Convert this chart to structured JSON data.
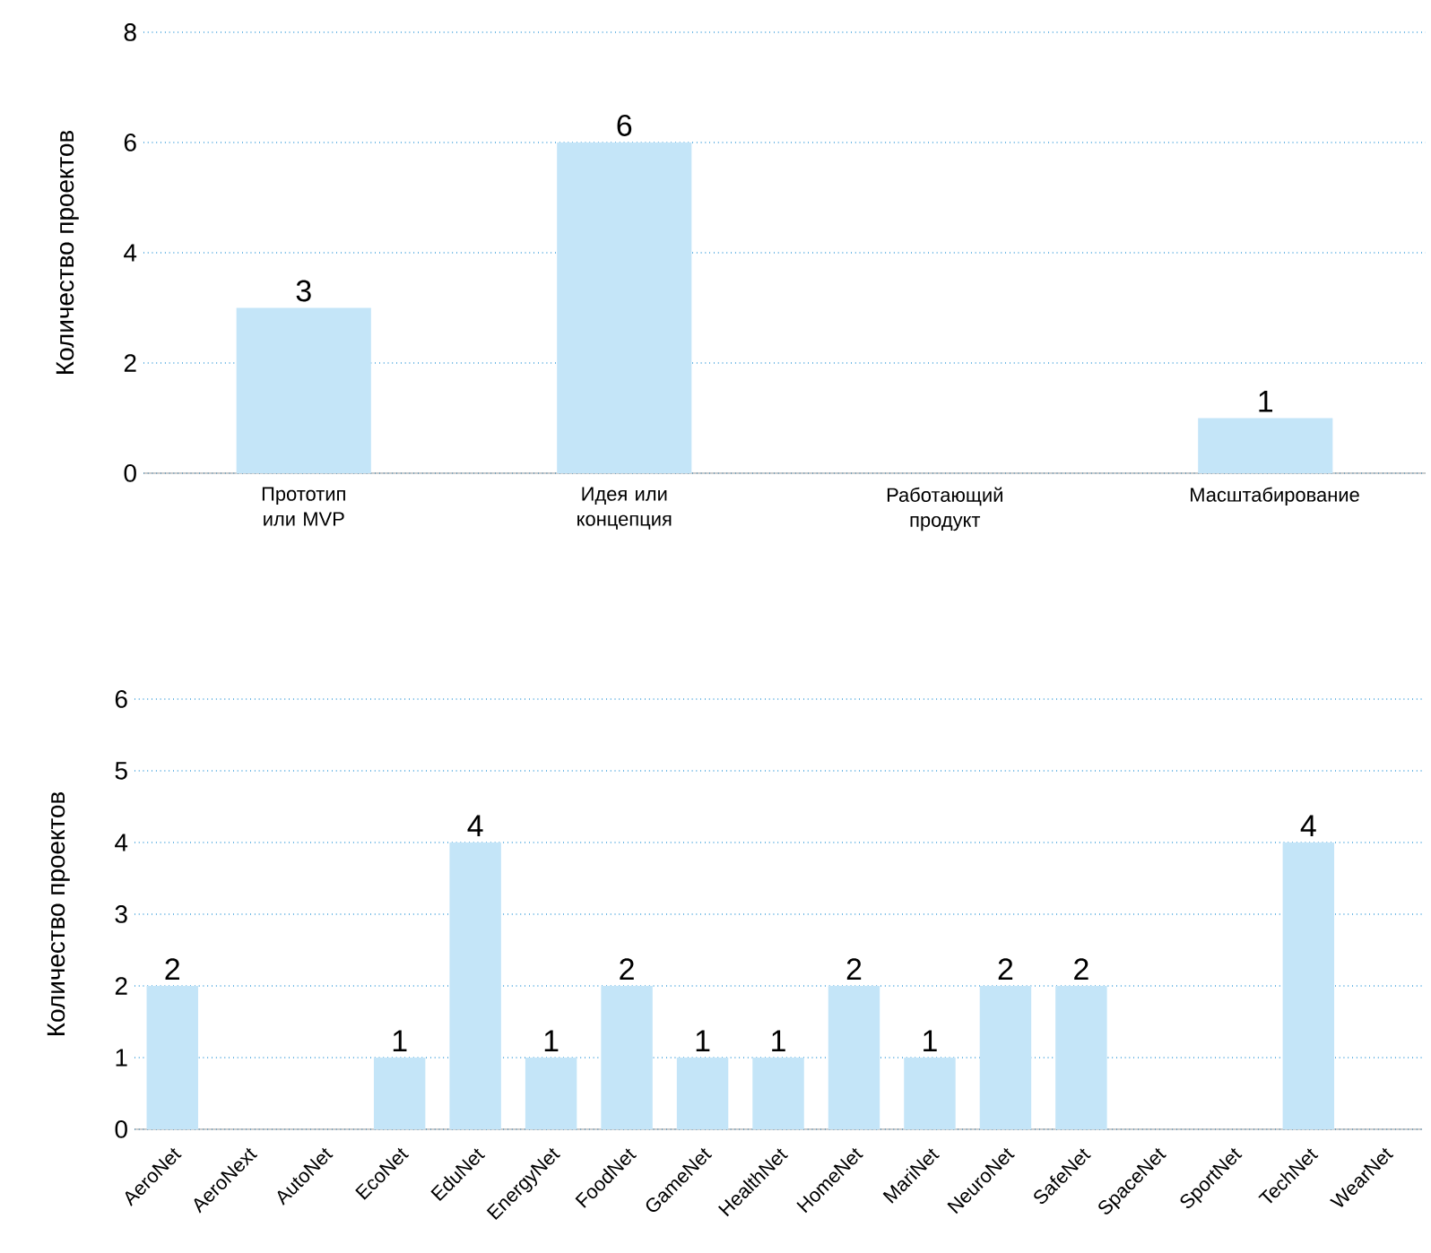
{
  "chart_data": [
    {
      "type": "bar",
      "ylabel": "Количество проектов",
      "categories": [
        "Прототип или MVP",
        "Идея или концепция",
        "Работающий продукт",
        "Масштабирование"
      ],
      "values": [
        3,
        6,
        0,
        1
      ],
      "value_labels": [
        "3",
        "6",
        null,
        "1"
      ],
      "color": "#c4e5f8",
      "ylim": [
        0,
        8
      ],
      "yticks": [
        0,
        2,
        4,
        6,
        8
      ],
      "grid": "y"
    },
    {
      "type": "bar",
      "ylabel": "Количество проектов",
      "categories": [
        "AeroNet",
        "AeroNext",
        "AutoNet",
        "EcoNet",
        "EduNet",
        "EnergyNet",
        "FoodNet",
        "GameNet",
        "HealthNet",
        "HomeNet",
        "MariNet",
        "NeuroNet",
        "SafeNet",
        "SpaceNet",
        "SportNet",
        "TechNet",
        "WearNet"
      ],
      "values": [
        2,
        0,
        0,
        1,
        4,
        1,
        2,
        1,
        1,
        2,
        1,
        2,
        2,
        0,
        0,
        4,
        0
      ],
      "value_labels": [
        "2",
        null,
        null,
        "1",
        "4",
        "1",
        "2",
        "1",
        "1",
        "2",
        "1",
        "2",
        "2",
        null,
        null,
        "4",
        null
      ],
      "color": "#c4e5f8",
      "ylim": [
        0,
        6
      ],
      "yticks": [
        0,
        1,
        2,
        3,
        4,
        5,
        6
      ],
      "grid": "y"
    }
  ]
}
